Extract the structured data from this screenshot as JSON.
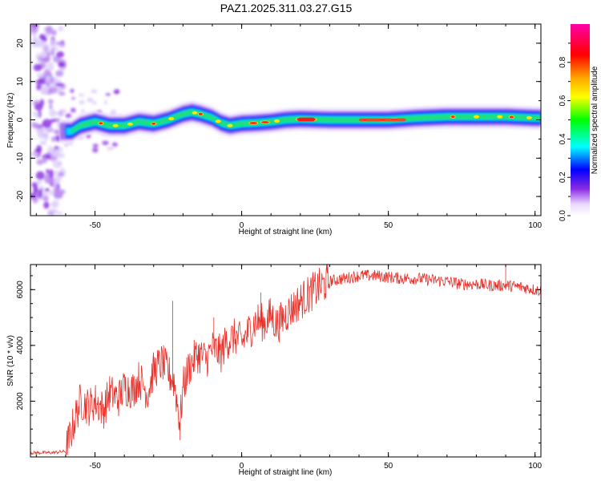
{
  "title": "PAZ1.2025.311.03.27.G15",
  "chart_data": [
    {
      "type": "heatmap",
      "xlabel": "Height of straight line (km)",
      "ylabel": "Frequency (Hz)",
      "xlim": [
        -72,
        102
      ],
      "ylim": [
        -25,
        25
      ],
      "xticks": [
        -50,
        0,
        50,
        100
      ],
      "yticks": [
        -20,
        -10,
        0,
        10,
        20
      ],
      "ridge": {
        "x": [
          -62,
          -58,
          -55,
          -50,
          -45,
          -40,
          -35,
          -30,
          -25,
          -20,
          -17,
          -14,
          -10,
          -7,
          -4,
          0,
          5,
          10,
          15,
          20,
          30,
          40,
          50,
          60,
          70,
          80,
          90,
          100
        ],
        "freq": [
          -3,
          -3,
          -1.5,
          -0.5,
          -1.5,
          -1.5,
          -0.5,
          -1,
          0,
          1.5,
          2,
          1.5,
          0.5,
          -0.8,
          -1.5,
          -1,
          -0.8,
          -0.5,
          0,
          0.2,
          0,
          0,
          0,
          0.5,
          0.8,
          0.8,
          0.8,
          0.5
        ]
      },
      "colorbar": {
        "label": "Normalized spectral amplitude",
        "ticks": [
          "0.0",
          "0.2",
          "0.4",
          "0.6",
          "0.8"
        ],
        "range": [
          0,
          1
        ]
      }
    },
    {
      "type": "line",
      "xlabel": "Height of straight line (km)",
      "ylabel": "SNR (10 * v/v)",
      "xlim": [
        -72,
        102
      ],
      "ylim": [
        0,
        6900
      ],
      "xticks": [
        -50,
        0,
        50,
        100
      ],
      "yticks": [
        2000,
        4000,
        6000
      ],
      "series": [
        {
          "name": "SNR",
          "color": "#e8302a",
          "x": [
            -72,
            -65,
            -60,
            -57,
            -55,
            -52,
            -50,
            -47,
            -45,
            -42,
            -40,
            -37,
            -35,
            -32,
            -30,
            -27,
            -25,
            -23,
            -21,
            -20,
            -18,
            -15,
            -12,
            -10,
            -7,
            -5,
            -2,
            0,
            3,
            5,
            8,
            10,
            12,
            15,
            18,
            20,
            25,
            30,
            35,
            40,
            45,
            50,
            55,
            60,
            65,
            70,
            75,
            80,
            85,
            90,
            95,
            100,
            102
          ],
          "values": [
            150,
            150,
            200,
            1300,
            2000,
            1800,
            2000,
            1700,
            2300,
            2100,
            2500,
            2400,
            2800,
            2300,
            3100,
            3400,
            3000,
            2700,
            1200,
            2500,
            3200,
            3700,
            3500,
            3900,
            3700,
            4200,
            4300,
            4100,
            4600,
            4900,
            4800,
            5100,
            4700,
            5100,
            5400,
            5600,
            6000,
            6300,
            6400,
            6500,
            6500,
            6450,
            6400,
            6400,
            6350,
            6300,
            6200,
            6200,
            6150,
            6150,
            6100,
            6000,
            5950
          ]
        }
      ]
    }
  ]
}
